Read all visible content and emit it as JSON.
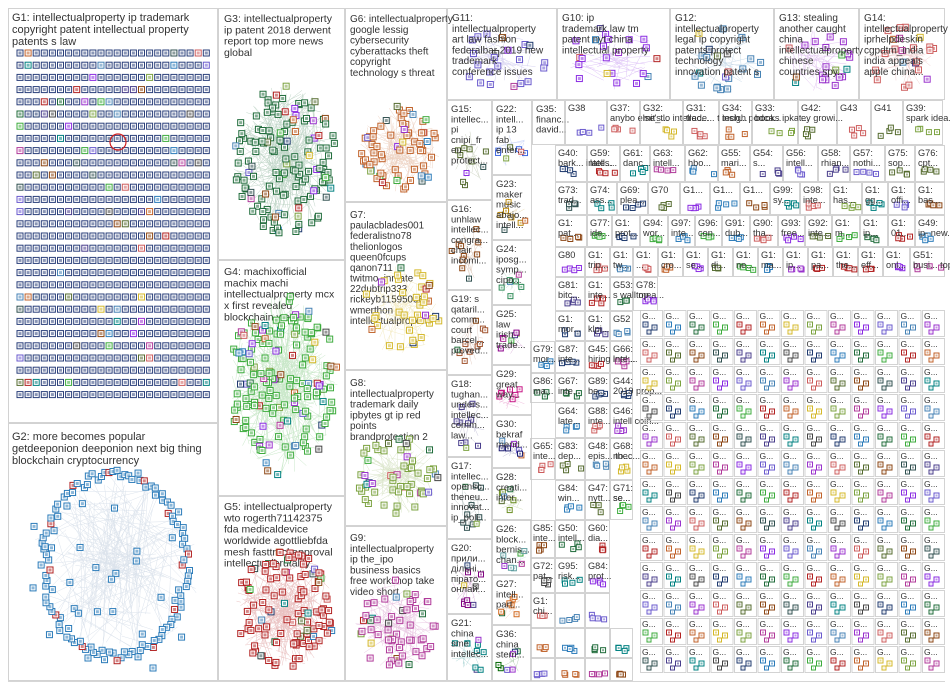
{
  "groups": [
    {
      "id": "G1",
      "lines": [
        "G1: intellectualproperty ip trademark",
        "copyright patent intellectual property",
        "patents s law"
      ],
      "color": "#1f3a6e"
    },
    {
      "id": "G2",
      "lines": [
        "G2: more becomes popular",
        "getdeeponion deeponion next big thing",
        "blockchain cryptocurrency"
      ],
      "color": "#2b7bb9"
    },
    {
      "id": "G3",
      "lines": [
        "G3: intellectualproperty",
        "ip patent 2018 derwent",
        "report top more news",
        "global"
      ],
      "color": "#1f6b3a"
    },
    {
      "id": "G4",
      "lines": [
        "G4: machixofficial",
        "machix machi",
        "intellectualproperty mcx",
        "x first revealed",
        "blockchain we've"
      ],
      "color": "#3cab3c"
    },
    {
      "id": "G5",
      "lines": [
        "G5: intellectualproperty",
        "wto rogerth71142375",
        "fda medicaldevice",
        "worldwide agottliebfda",
        "mesh fasttrackapproval",
        "intellectualbrutality"
      ],
      "color": "#b22222"
    },
    {
      "id": "G6",
      "lines": [
        "G6: intellectualproperty",
        "google lessig",
        "cybersecurity",
        "cyberattacks theft",
        "copyright",
        "technology s threat"
      ],
      "color": "#c0622a"
    },
    {
      "id": "G7",
      "lines": [
        "G7:",
        "paulacblades001",
        "federalistno78",
        "thelionlogos",
        "queen0fcups",
        "qanon711",
        "twitmo_inmate",
        "22dubtrip333",
        "rickeyb11595096",
        "wmerthon",
        "intellectualproperty"
      ],
      "color": "#d4b82a"
    },
    {
      "id": "G8",
      "lines": [
        "G8:",
        "intellectualproperty",
        "trademark daily",
        "ipbytes gt ip red",
        "points",
        "brandprotection 2"
      ],
      "color": "#7ba23f"
    },
    {
      "id": "G9",
      "lines": [
        "G9:",
        "intellectualproperty",
        "ip the_ipo",
        "business basics",
        "free workshop take",
        "video short"
      ],
      "color": "#b03a9a"
    },
    {
      "id": "G10",
      "lines": [
        "G10: ip",
        "trademark law tm",
        "patent nyt china",
        "intellectual property"
      ],
      "color": "#8a2be2"
    },
    {
      "id": "G11",
      "lines": [
        "G11:",
        "intellectualproperty",
        "art law fashion",
        "federalbar 2019 new",
        "trademark",
        "conference issues"
      ],
      "color": "#6a5acd"
    },
    {
      "id": "G12",
      "lines": [
        "G12:",
        "intellectualproperty",
        "legal ip copyright",
        "patents protect",
        "technology",
        "innovation patent s"
      ],
      "color": "#4682b4"
    },
    {
      "id": "G13",
      "lines": [
        "G13: stealing",
        "another caught",
        "china",
        "intellectualproperty",
        "chinese",
        "countries spy..."
      ],
      "color": "#9932cc"
    },
    {
      "id": "G14",
      "lines": [
        "G14:",
        "intellectualproperty",
        "iprhelpdeskin",
        "cgpdtm_india",
        "india appeals",
        "apple china..."
      ],
      "color": "#cd5c5c"
    },
    {
      "id": "G15",
      "lines": [
        "G15:",
        "intellec...",
        "pi",
        "cnipi_fr",
        "eu",
        "protect...",
        "2024..."
      ],
      "color": "#556b2f"
    },
    {
      "id": "G16",
      "lines": [
        "G16:",
        "unhlaw",
        "intellec...",
        "congra...",
        "chair",
        "incomi...",
        "theeals..."
      ],
      "color": "#8b4513"
    },
    {
      "id": "G17",
      "lines": [
        "G17:",
        "intellec...",
        "opensc...",
        "theneu...",
        "innovat...",
        "ip_poli..."
      ],
      "color": "#2f4f4f"
    },
    {
      "id": "G18",
      "lines": [
        "G18:",
        "tughan...",
        "unders...",
        "intellec...",
        "comm...",
        "law..."
      ],
      "color": "#483d8b"
    },
    {
      "id": "G19",
      "lines": [
        "G19: s",
        "qataril...",
        "comm...",
        "court",
        "barcel...",
        "proved..."
      ],
      "color": "#a0522d"
    },
    {
      "id": "G20",
      "lines": [
        "G20:",
        "прили...",
        "дільні...",
        "пірато...",
        "онлай..."
      ],
      "color": "#800080"
    },
    {
      "id": "G21",
      "lines": [
        "G21:",
        "china",
        "sme",
        "intellec..."
      ],
      "color": "#008080"
    },
    {
      "id": "G22",
      "lines": [
        "G22:",
        "intell...",
        "ip 13",
        "fab",
        "enter..."
      ],
      "color": "#4169e1"
    },
    {
      "id": "G23",
      "lines": [
        "G23:",
        "maker",
        "music",
        "abajo...",
        "intell..."
      ],
      "color": "#b8860b"
    },
    {
      "id": "G24",
      "lines": [
        "G24:",
        "iposg...",
        "symp...",
        "cipo..."
      ],
      "color": "#2e8b57"
    },
    {
      "id": "G25",
      "lines": [
        "G25:",
        "law",
        "irish",
        "trade..."
      ],
      "color": "#8b008b"
    },
    {
      "id": "G26",
      "lines": [
        "G26:",
        "block...",
        "bernis...",
        "chan..."
      ],
      "color": "#5f9ea0"
    },
    {
      "id": "G27",
      "lines": [
        "G27:",
        "intell...",
        "part..."
      ],
      "color": "#d2691e"
    },
    {
      "id": "G28",
      "lines": [
        "G28:",
        "creati...",
        "inter..."
      ],
      "color": "#6b8e23"
    },
    {
      "id": "G29",
      "lines": [
        "G29:",
        "great",
        "way..."
      ],
      "color": "#c71585"
    },
    {
      "id": "G30",
      "lines": [
        "G30:",
        "bekraf",
        "mend..."
      ],
      "color": "#191970"
    },
    {
      "id": "G35",
      "lines": [
        "G35:",
        "financ...",
        "david..."
      ],
      "color": "#8b0000"
    },
    {
      "id": "G36",
      "lines": [
        "G36:",
        "china",
        "stem..."
      ],
      "color": "#006400"
    }
  ],
  "small_cells": [
    "G38",
    "G37: anybo else's...",
    "G32: mit_tlo intellec...",
    "G31: trade... t tech...",
    "G34: insigh podca...",
    "G33: books ipkat...",
    "G42: ey growi...",
    "G43",
    "G41",
    "G39: spark idea...",
    "G40: bark... intell...",
    "G59: lates...",
    "G61: danc...",
    "G63: intell...",
    "G62: hbo...",
    "G55: mari...",
    "G54: s...",
    "G56: intell...",
    "G58: rhian...",
    "G57: nothi...",
    "G75: sop...",
    "G76: cpt...",
    "G73: trad...",
    "G74: ass...",
    "G69: plea...",
    "G70",
    "G1...",
    "G1...",
    "G1...",
    "G99: sy...",
    "G98: inte...",
    "G1: has...",
    "G1: gg...",
    "G1: offi...",
    "G1: bas...",
    "G1: pat...",
    "G77: ide...",
    "G1: prot...",
    "G94: wor...",
    "G97: inte...",
    "G96: con...",
    "G91: dub...",
    "G90: tha...",
    "G93: free...",
    "G92: inte...",
    "G1: m...",
    "G1: ip...",
    "G1: 01...",
    "G49: ip- new...",
    "G80",
    "G1: trip...",
    "G1: tw...",
    "G1: ...",
    "G1: cro...",
    "G1: se...",
    "G1: di...",
    "G1: ne...",
    "G1: ma...",
    "G1: ip...",
    "G1: pa...",
    "G1: the...",
    "G1: eff...",
    "G1: onl...",
    "G51: busi... topi...",
    "G81: bitc...",
    "G1: inte...",
    "G53: s wall mea...",
    "G78: top...",
    "G1: mor...",
    "G1: klpi...",
    "G52",
    "G79: mor...",
    "G87: inte...",
    "G45: hiring look...",
    "G66: inte...",
    "G86: ma...",
    "G67: inte...",
    "G89: be...",
    "G44: 2019 prop...",
    "G64: late...",
    "G88: inte...",
    "G46: intell coin...",
    "G65: inte...",
    "G83: dep...",
    "G48: epis... thec...",
    "G68: no...",
    "G84: win...",
    "G47: nytt... se...",
    "G71: se...",
    "G85: inte...",
    "G50: intell...",
    "G60: dia...",
    "G72: pat...",
    "G95: risk...",
    "G84: prot...",
    "G1: chi..."
  ]
}
